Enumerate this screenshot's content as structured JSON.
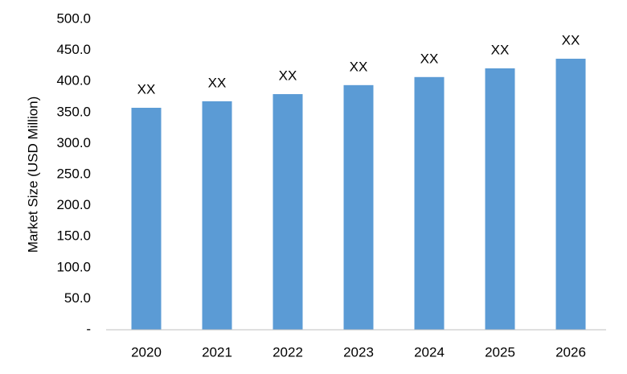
{
  "chart_data": {
    "type": "bar",
    "y_label": "Market Size (USD Million)",
    "categories": [
      "2020",
      "2021",
      "2022",
      "2023",
      "2024",
      "2025",
      "2026"
    ],
    "values": [
      357.5,
      368,
      379.5,
      394,
      407,
      421,
      436.5
    ],
    "value_labels": [
      "XX",
      "XX",
      "XX",
      "XX",
      "XX",
      "XX",
      "XX"
    ],
    "color": "#5b9bd5",
    "ylim": [
      0,
      500
    ],
    "yticks": [
      {
        "value": 0,
        "label": "-"
      },
      {
        "value": 50,
        "label": "50.0"
      },
      {
        "value": 100,
        "label": "100.0"
      },
      {
        "value": 150,
        "label": "150.0"
      },
      {
        "value": 200,
        "label": "200.0"
      },
      {
        "value": 250,
        "label": "250.0"
      },
      {
        "value": 300,
        "label": "300.0"
      },
      {
        "value": 350,
        "label": "350.0"
      },
      {
        "value": 400,
        "label": "400.0"
      },
      {
        "value": 450,
        "label": "450.0"
      },
      {
        "value": 500,
        "label": "500.0"
      }
    ],
    "grid": false
  }
}
